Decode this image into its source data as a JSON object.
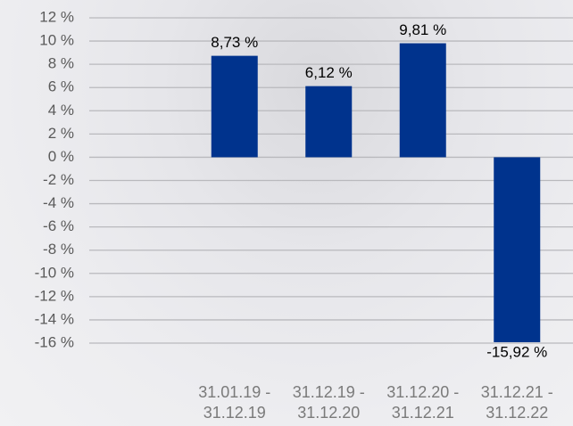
{
  "chart_data": {
    "type": "bar",
    "categories": [
      "31.01.19 - 31.12.19",
      "31.12.19 - 31.12.20",
      "31.12.20 - 31.12.21",
      "31.12.21 - 31.12.22"
    ],
    "values": [
      8.73,
      6.12,
      9.81,
      -15.92
    ],
    "value_labels": [
      "8,73 %",
      "6,12 %",
      "9,81 %",
      "-15,92 %"
    ],
    "color": "#00338d",
    "ylim": [
      -16,
      12
    ],
    "yticks": [
      {
        "value": -16,
        "label": "-16 %"
      },
      {
        "value": -14,
        "label": "-14 %"
      },
      {
        "value": -12,
        "label": "-12 %"
      },
      {
        "value": -10,
        "label": "-10 %"
      },
      {
        "value": -8,
        "label": "-8 %"
      },
      {
        "value": -6,
        "label": "-6 %"
      },
      {
        "value": -4,
        "label": "-4 %"
      },
      {
        "value": -2,
        "label": "-2 %"
      },
      {
        "value": 0,
        "label": "0 %"
      },
      {
        "value": 2,
        "label": "2 %"
      },
      {
        "value": 4,
        "label": "4 %"
      },
      {
        "value": 6,
        "label": "6 %"
      },
      {
        "value": 8,
        "label": "8 %"
      },
      {
        "value": 10,
        "label": "10 %"
      },
      {
        "value": 12,
        "label": "12 %"
      }
    ],
    "grid": true
  }
}
